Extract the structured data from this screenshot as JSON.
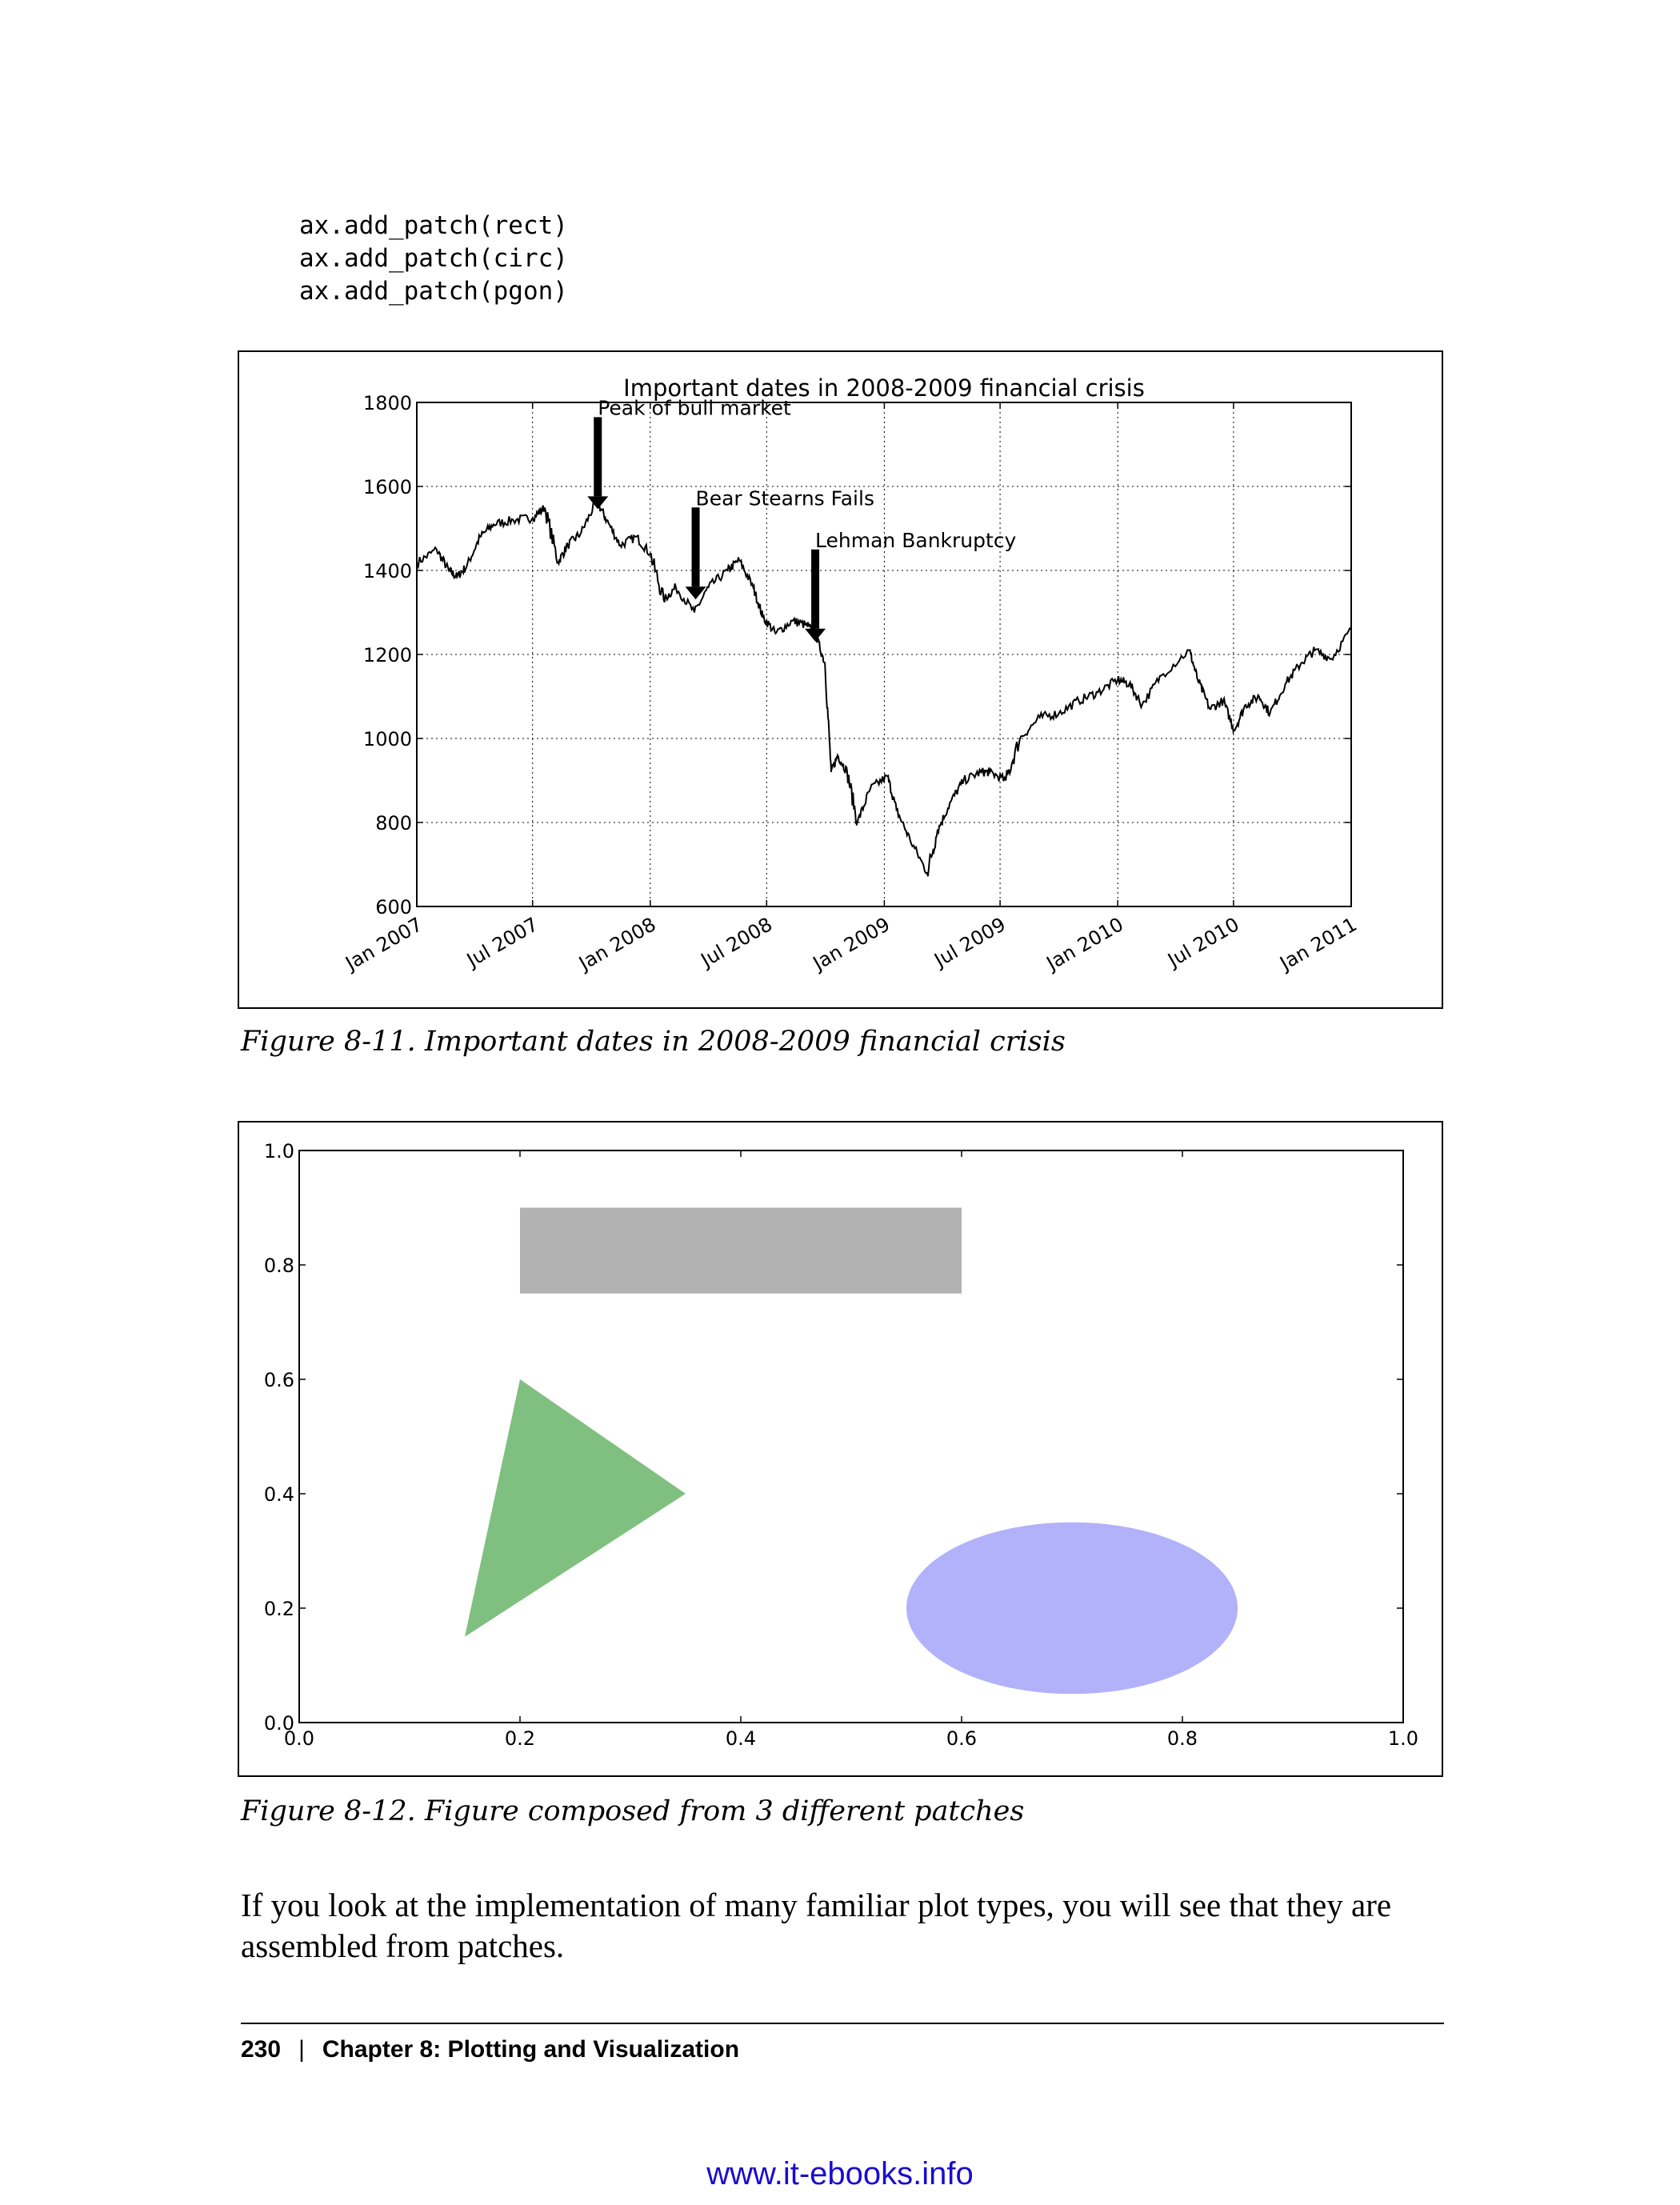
{
  "code_lines": [
    "ax.add_patch(rect)",
    "ax.add_patch(circ)",
    "ax.add_patch(pgon)"
  ],
  "figures": {
    "fig1_caption": "Figure 8-11. Important dates in 2008-2009 financial crisis",
    "fig2_caption": "Figure 8-12. Figure composed from 3 different patches"
  },
  "body_text": "If you look at the implementation of many familiar plot types, you will see that they are assembled from patches.",
  "footer": {
    "page_number": "230",
    "chapter": "Chapter 8: Plotting and Visualization"
  },
  "watermark": "www.it-ebooks.info",
  "chart_data": [
    {
      "type": "line",
      "title": "Important dates in 2008-2009 financial crisis",
      "xlabel": "",
      "ylabel": "",
      "x_range": [
        "2007-01-01",
        "2011-01-01"
      ],
      "x_tick_labels": [
        "Jan 2007",
        "Jul 2007",
        "Jan 2008",
        "Jul 2008",
        "Jan 2009",
        "Jul 2009",
        "Jan 2010",
        "Jul 2010",
        "Jan 2011"
      ],
      "x_ticks": [
        "2007-01-01",
        "2007-07-01",
        "2008-01-01",
        "2008-07-01",
        "2009-01-01",
        "2009-07-01",
        "2010-01-01",
        "2010-07-01",
        "2011-01-01"
      ],
      "ylim": [
        600,
        1800
      ],
      "y_ticks": [
        600,
        800,
        1000,
        1200,
        1400,
        1600,
        1800
      ],
      "grid": true,
      "series": [
        {
          "color": "#000000",
          "x": [
            "2007-01-01",
            "2007-02-01",
            "2007-02-20",
            "2007-03-05",
            "2007-03-20",
            "2007-04-10",
            "2007-05-01",
            "2007-06-01",
            "2007-07-01",
            "2007-07-20",
            "2007-08-10",
            "2007-08-25",
            "2007-09-15",
            "2007-10-09",
            "2007-10-25",
            "2007-11-15",
            "2007-12-10",
            "2008-01-01",
            "2008-01-22",
            "2008-02-10",
            "2008-03-10",
            "2008-04-01",
            "2008-05-01",
            "2008-05-19",
            "2008-06-10",
            "2008-06-25",
            "2008-07-15",
            "2008-08-10",
            "2008-09-01",
            "2008-09-15",
            "2008-09-30",
            "2008-10-10",
            "2008-10-20",
            "2008-11-04",
            "2008-11-20",
            "2008-12-10",
            "2009-01-06",
            "2009-01-20",
            "2009-02-10",
            "2009-03-09",
            "2009-03-25",
            "2009-04-15",
            "2009-05-05",
            "2009-06-01",
            "2009-06-15",
            "2009-07-10",
            "2009-08-01",
            "2009-09-01",
            "2009-10-01",
            "2009-11-01",
            "2009-12-01",
            "2010-01-01",
            "2010-01-19",
            "2010-02-08",
            "2010-03-10",
            "2010-04-23",
            "2010-05-06",
            "2010-05-25",
            "2010-06-15",
            "2010-07-02",
            "2010-07-20",
            "2010-08-10",
            "2010-08-27",
            "2010-09-20",
            "2010-10-15",
            "2010-11-05",
            "2010-12-01",
            "2011-01-01"
          ],
          "values": [
            1418,
            1450,
            1400,
            1385,
            1410,
            1480,
            1510,
            1520,
            1525,
            1550,
            1420,
            1460,
            1490,
            1565,
            1520,
            1460,
            1480,
            1440,
            1330,
            1360,
            1300,
            1360,
            1400,
            1425,
            1360,
            1290,
            1250,
            1280,
            1270,
            1250,
            1180,
            920,
            960,
            920,
            800,
            880,
            910,
            830,
            760,
            680,
            780,
            850,
            900,
            920,
            920,
            900,
            1000,
            1050,
            1060,
            1090,
            1110,
            1140,
            1130,
            1080,
            1150,
            1210,
            1140,
            1070,
            1090,
            1020,
            1080,
            1100,
            1060,
            1130,
            1180,
            1210,
            1190,
            1260
          ]
        }
      ],
      "annotations": [
        {
          "text": "Peak of bull market",
          "x": "2007-10-11",
          "y": 1565
        },
        {
          "text": "Bear Stearns Fails",
          "x": "2008-03-12",
          "y": 1350
        },
        {
          "text": "Lehman Bankruptcy",
          "x": "2008-09-15",
          "y": 1250
        }
      ]
    },
    {
      "type": "other",
      "xlim": [
        0,
        1
      ],
      "ylim": [
        0,
        1
      ],
      "x_ticks": [
        0.0,
        0.2,
        0.4,
        0.6,
        0.8,
        1.0
      ],
      "x_tick_labels": [
        "0.0",
        "0.2",
        "0.4",
        "0.6",
        "0.8",
        "1.0"
      ],
      "y_ticks": [
        0.0,
        0.2,
        0.4,
        0.6,
        0.8,
        1.0
      ],
      "y_tick_labels": [
        "0.0",
        "0.2",
        "0.4",
        "0.6",
        "0.8",
        "1.0"
      ],
      "grid": false,
      "patches": [
        {
          "kind": "rectangle",
          "xy": [
            0.2,
            0.75
          ],
          "width": 0.4,
          "height": 0.15,
          "color": "#b2b2b2"
        },
        {
          "kind": "circle",
          "center": [
            0.7,
            0.2
          ],
          "radius": 0.15,
          "color": "#b2b2fa"
        },
        {
          "kind": "polygon",
          "points": [
            [
              0.15,
              0.15
            ],
            [
              0.35,
              0.4
            ],
            [
              0.2,
              0.6
            ]
          ],
          "color": "#7fbf7f"
        }
      ]
    }
  ]
}
